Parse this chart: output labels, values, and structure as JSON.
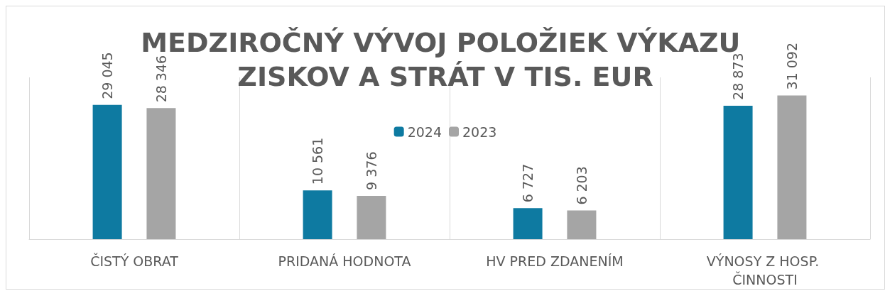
{
  "chart_data": {
    "type": "bar",
    "title": "MEDZIROČNÝ VÝVOJ POLOŽIEK VÝKAZU ZISKOV A STRÁT V TIS. EUR",
    "categories": [
      "ČISTÝ OBRAT",
      "PRIDANÁ HODNOTA",
      "HV PRED ZDANENÍM",
      "VÝNOSY Z HOSP. ČINNOSTI"
    ],
    "series": [
      {
        "name": "2024",
        "color": "#0e7aa1",
        "values": [
          29045,
          10561,
          6727,
          28873
        ],
        "value_labels": [
          "29 045",
          "10 561",
          "6 727",
          "28 873"
        ]
      },
      {
        "name": "2023",
        "color": "#a5a5a5",
        "values": [
          28346,
          9376,
          6203,
          31092
        ],
        "value_labels": [
          "28 346",
          "9 376",
          "6 203",
          "31 092"
        ]
      }
    ],
    "legend": "top",
    "grid": "x"
  }
}
